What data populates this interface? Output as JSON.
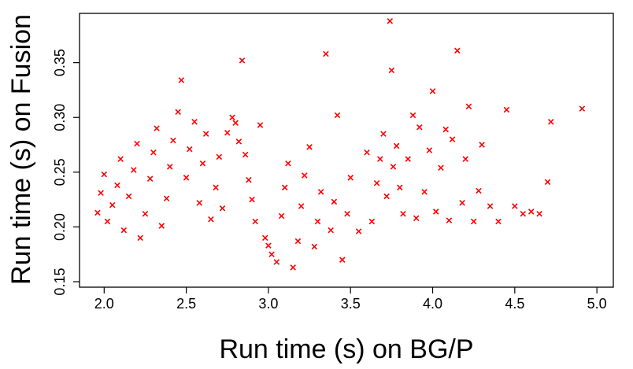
{
  "chart_data": {
    "type": "scatter",
    "title": "",
    "xlabel": "Run time (s) on BG/P",
    "ylabel": "Run time (s) on Fusion",
    "xlim": [
      1.85,
      5.1
    ],
    "ylim": [
      0.145,
      0.395
    ],
    "x_ticks": [
      2.0,
      2.5,
      3.0,
      3.5,
      4.0,
      4.5,
      5.0
    ],
    "x_tick_labels": [
      "2.0",
      "2.5",
      "3.0",
      "3.5",
      "4.0",
      "4.5",
      "5.0"
    ],
    "y_ticks": [
      0.15,
      0.2,
      0.25,
      0.3,
      0.35
    ],
    "y_tick_labels": [
      "0.15",
      "0.20",
      "0.25",
      "0.30",
      "0.35"
    ],
    "marker": "x",
    "marker_color": "#ff0000",
    "grid": false,
    "legend": "none",
    "series": [
      {
        "values_note": "",
        "points": [
          [
            1.96,
            0.213
          ],
          [
            1.98,
            0.231
          ],
          [
            2.0,
            0.248
          ],
          [
            2.02,
            0.205
          ],
          [
            2.05,
            0.22
          ],
          [
            2.08,
            0.238
          ],
          [
            2.1,
            0.262
          ],
          [
            2.12,
            0.197
          ],
          [
            2.15,
            0.228
          ],
          [
            2.18,
            0.252
          ],
          [
            2.2,
            0.276
          ],
          [
            2.22,
            0.19
          ],
          [
            2.25,
            0.212
          ],
          [
            2.28,
            0.244
          ],
          [
            2.3,
            0.268
          ],
          [
            2.32,
            0.29
          ],
          [
            2.35,
            0.201
          ],
          [
            2.38,
            0.226
          ],
          [
            2.4,
            0.255
          ],
          [
            2.42,
            0.279
          ],
          [
            2.45,
            0.305
          ],
          [
            2.47,
            0.334
          ],
          [
            2.5,
            0.245
          ],
          [
            2.52,
            0.271
          ],
          [
            2.55,
            0.296
          ],
          [
            2.58,
            0.222
          ],
          [
            2.6,
            0.258
          ],
          [
            2.62,
            0.285
          ],
          [
            2.65,
            0.207
          ],
          [
            2.68,
            0.236
          ],
          [
            2.7,
            0.264
          ],
          [
            2.72,
            0.217
          ],
          [
            2.75,
            0.286
          ],
          [
            2.78,
            0.3
          ],
          [
            2.8,
            0.295
          ],
          [
            2.82,
            0.278
          ],
          [
            2.84,
            0.352
          ],
          [
            2.86,
            0.266
          ],
          [
            2.88,
            0.243
          ],
          [
            2.9,
            0.225
          ],
          [
            2.92,
            0.205
          ],
          [
            2.95,
            0.293
          ],
          [
            2.98,
            0.19
          ],
          [
            3.0,
            0.183
          ],
          [
            3.02,
            0.175
          ],
          [
            3.05,
            0.168
          ],
          [
            3.08,
            0.21
          ],
          [
            3.1,
            0.236
          ],
          [
            3.12,
            0.258
          ],
          [
            3.15,
            0.163
          ],
          [
            3.18,
            0.187
          ],
          [
            3.2,
            0.219
          ],
          [
            3.22,
            0.247
          ],
          [
            3.25,
            0.273
          ],
          [
            3.28,
            0.182
          ],
          [
            3.3,
            0.205
          ],
          [
            3.32,
            0.232
          ],
          [
            3.35,
            0.358
          ],
          [
            3.38,
            0.197
          ],
          [
            3.4,
            0.223
          ],
          [
            3.42,
            0.302
          ],
          [
            3.45,
            0.17
          ],
          [
            3.48,
            0.212
          ],
          [
            3.5,
            0.245
          ],
          [
            3.55,
            0.196
          ],
          [
            3.6,
            0.268
          ],
          [
            3.63,
            0.205
          ],
          [
            3.66,
            0.24
          ],
          [
            3.68,
            0.262
          ],
          [
            3.7,
            0.285
          ],
          [
            3.72,
            0.228
          ],
          [
            3.74,
            0.388
          ],
          [
            3.75,
            0.343
          ],
          [
            3.76,
            0.255
          ],
          [
            3.78,
            0.274
          ],
          [
            3.8,
            0.236
          ],
          [
            3.82,
            0.212
          ],
          [
            3.85,
            0.262
          ],
          [
            3.88,
            0.302
          ],
          [
            3.9,
            0.208
          ],
          [
            3.92,
            0.291
          ],
          [
            3.95,
            0.232
          ],
          [
            3.98,
            0.27
          ],
          [
            4.0,
            0.324
          ],
          [
            4.02,
            0.214
          ],
          [
            4.05,
            0.254
          ],
          [
            4.08,
            0.289
          ],
          [
            4.1,
            0.206
          ],
          [
            4.12,
            0.28
          ],
          [
            4.15,
            0.361
          ],
          [
            4.18,
            0.222
          ],
          [
            4.2,
            0.262
          ],
          [
            4.22,
            0.31
          ],
          [
            4.25,
            0.205
          ],
          [
            4.28,
            0.233
          ],
          [
            4.3,
            0.275
          ],
          [
            4.35,
            0.219
          ],
          [
            4.4,
            0.205
          ],
          [
            4.45,
            0.307
          ],
          [
            4.5,
            0.219
          ],
          [
            4.55,
            0.212
          ],
          [
            4.6,
            0.214
          ],
          [
            4.65,
            0.212
          ],
          [
            4.7,
            0.241
          ],
          [
            4.72,
            0.296
          ],
          [
            4.91,
            0.308
          ]
        ]
      }
    ]
  }
}
